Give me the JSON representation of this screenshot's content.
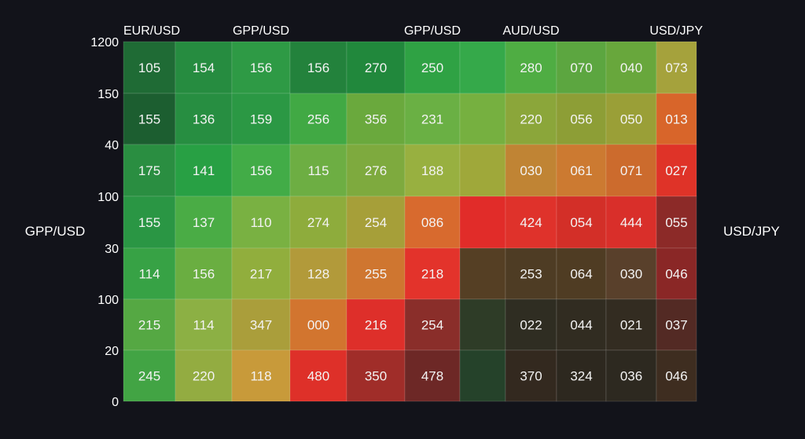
{
  "chart_data": {
    "type": "heatmap",
    "column_labels": [
      "EUR/USD",
      "",
      "GPP/USD",
      "",
      "",
      "GPP/USD",
      "",
      "AUD/USD",
      "",
      "",
      "USD/JPY"
    ],
    "row_tick_labels": [
      "1200",
      "150",
      "40",
      "100",
      "30",
      "100",
      "20",
      "0"
    ],
    "left_label": "GPP/USD",
    "right_label": "USD/JPY",
    "values": [
      [
        "105",
        "154",
        "156",
        "156",
        "270",
        "250",
        "",
        "280",
        "070",
        "040",
        "073"
      ],
      [
        "155",
        "136",
        "159",
        "256",
        "356",
        "231",
        "",
        "220",
        "056",
        "050",
        "013"
      ],
      [
        "175",
        "141",
        "156",
        "115",
        "276",
        "188",
        "",
        "030",
        "061",
        "071",
        "027"
      ],
      [
        "155",
        "137",
        "110",
        "274",
        "254",
        "086",
        "",
        "424",
        "054",
        "444",
        "055"
      ],
      [
        "114",
        "156",
        "217",
        "128",
        "255",
        "218",
        "",
        "253",
        "064",
        "030",
        "046"
      ],
      [
        "215",
        "114",
        "347",
        "000",
        "216",
        "254",
        "",
        "022",
        "044",
        "021",
        "037"
      ],
      [
        "245",
        "220",
        "118",
        "480",
        "350",
        "478",
        "",
        "370",
        "324",
        "036",
        "046"
      ]
    ],
    "cell_colors": [
      [
        "#1f6b35",
        "#268c40",
        "#2e9a45",
        "#23823c",
        "#21883c",
        "#2fa244",
        "#35a94a",
        "#4fad43",
        "#5ca640",
        "#68a73c",
        "#a5a23c"
      ],
      [
        "#1c5e30",
        "#278e41",
        "#2b9844",
        "#41a944",
        "#6aa93d",
        "#6ab044",
        "#76b040",
        "#8ba63a",
        "#8d9e36",
        "#9a9f37",
        "#d8652a"
      ],
      [
        "#2a8e41",
        "#28a044",
        "#42ac47",
        "#6dae43",
        "#7eaa3e",
        "#98b040",
        "#9fa83a",
        "#c08434",
        "#cc7a31",
        "#cc6b2d",
        "#df3328"
      ],
      [
        "#2a9644",
        "#4aac45",
        "#79b142",
        "#8eac3c",
        "#a69f39",
        "#d86a2e",
        "#e12c29",
        "#df322b",
        "#d32f28",
        "#d92f2a",
        "#8c2a28"
      ],
      [
        "#37a245",
        "#6aae41",
        "#91ae3d",
        "#b29a3a",
        "#cf7630",
        "#e3332b",
        "#553f24",
        "#4e3c24",
        "#4f3c23",
        "#59402b",
        "#8a2726"
      ],
      [
        "#55a843",
        "#8cb044",
        "#aa9e3b",
        "#d2752f",
        "#de2f2a",
        "#8a2e2a",
        "#2e3c27",
        "#2f2d22",
        "#312c21",
        "#332c21",
        "#532a24"
      ],
      [
        "#42a444",
        "#93ac41",
        "#c89a3a",
        "#de3029",
        "#a02d29",
        "#6d2826",
        "#25422a",
        "#33291f",
        "#2d281f",
        "#2d2920",
        "#3e2d20"
      ]
    ]
  }
}
